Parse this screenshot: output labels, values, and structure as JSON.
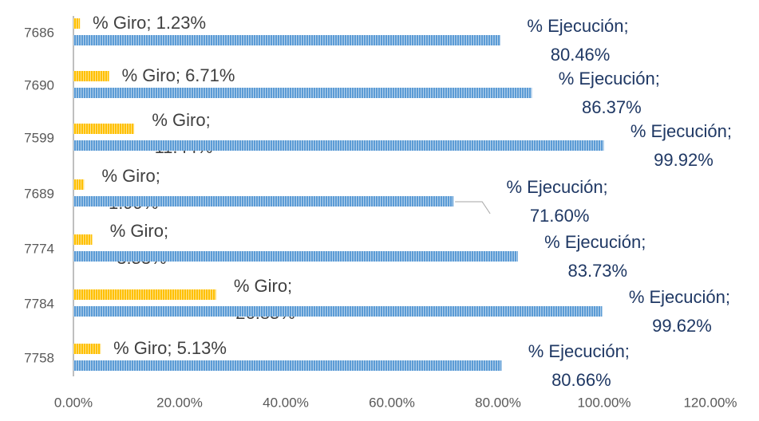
{
  "chart_data": {
    "type": "bar",
    "orientation": "horizontal",
    "categories": [
      "7686",
      "7690",
      "7599",
      "7689",
      "7774",
      "7784",
      "7758"
    ],
    "series": [
      {
        "name": "% Giro",
        "color": "#ffc000",
        "values": [
          1.23,
          6.71,
          11.44,
          1.99,
          3.53,
          26.85,
          5.13
        ],
        "value_labels": [
          "% Giro; 1.23%",
          "% Giro; 6.71%",
          "% Giro; 11.44%",
          "% Giro; 1.99%",
          "% Giro; 3.53%",
          "% Giro; 26.85%",
          "% Giro; 5.13%"
        ]
      },
      {
        "name": "% Ejecución",
        "color": "#5b9bd5",
        "values": [
          80.46,
          86.37,
          99.92,
          71.6,
          83.73,
          99.62,
          80.66
        ],
        "value_labels": [
          "% Ejecución; 80.46%",
          "% Ejecución; 86.37%",
          "% Ejecución; 99.92%",
          "% Ejecución; 71.60%",
          "% Ejecución; 83.73%",
          "% Ejecución; 99.62%",
          "% Ejecución; 80.66%"
        ]
      }
    ],
    "xlim": [
      0,
      120
    ],
    "xticks": [
      {
        "value": 0,
        "label": "0.00%"
      },
      {
        "value": 20,
        "label": "20.00%"
      },
      {
        "value": 40,
        "label": "40.00%"
      },
      {
        "value": 60,
        "label": "60.00%"
      },
      {
        "value": 80,
        "label": "80.00%"
      },
      {
        "value": 100,
        "label": "100.00%"
      },
      {
        "value": 120,
        "label": "120.00%"
      }
    ],
    "grid": false
  }
}
